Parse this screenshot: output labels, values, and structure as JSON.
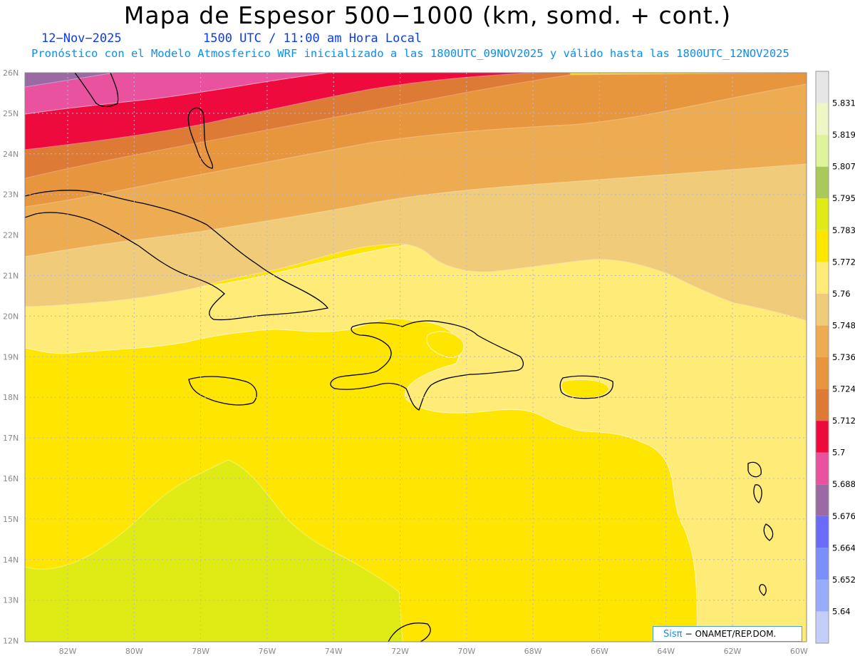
{
  "header": {
    "title": "Mapa de Espesor 500−1000 (km, somd. + cont.)",
    "date": "12−Nov−2025",
    "time": "1500 UTC / 11:00 am Hora Local",
    "subtitle": "Pronóstico con el Modelo Atmosferico WRF inicializado a las 1800UTC_09NOV2025 y válido hasta las  1800UTC_12NOV2025"
  },
  "map": {
    "lon_labels": [
      "82W",
      "80W",
      "78W",
      "76W",
      "74W",
      "72W",
      "70W",
      "68W",
      "66W",
      "64W",
      "62W",
      "60W"
    ],
    "lat_labels": [
      "26N",
      "25N",
      "24N",
      "23N",
      "22N",
      "21N",
      "20N",
      "19N",
      "18N",
      "17N",
      "16N",
      "15N",
      "14N",
      "13N",
      "12N"
    ],
    "fill_colors": {
      "purple": "#9b6aa5",
      "pink": "#e8529f",
      "red": "#ee0a3c",
      "dark_orange": "#dd7a35",
      "orange": "#e8963e",
      "light_orange": "#eeac52",
      "tan": "#f0cc7a",
      "pale_yellow": "#ffeb77",
      "yellow": "#ffe600",
      "yellow_green": "#e0ea14"
    }
  },
  "colorbar": {
    "labels": [
      "5.64",
      "5.652",
      "5.664",
      "5.676",
      "5.688",
      "5.7",
      "5.712",
      "5.724",
      "5.736",
      "5.748",
      "5.76",
      "5.772",
      "5.783",
      "5.795",
      "5.807",
      "5.819",
      "5.831"
    ],
    "colors": [
      "#c4cdfb",
      "#99abfb",
      "#7c8ef8",
      "#6a6cf8",
      "#9b6aa5",
      "#e8529f",
      "#ee0a3c",
      "#dd7a35",
      "#e8963e",
      "#eeac52",
      "#f0cc7a",
      "#ffeb77",
      "#ffe600",
      "#e0ea14",
      "#a9c95a",
      "#dff39a",
      "#eef6c6",
      "#e6e6e6"
    ]
  },
  "credit": {
    "logo": "Sisπ",
    "org": "− ONAMET/REP.DOM."
  }
}
